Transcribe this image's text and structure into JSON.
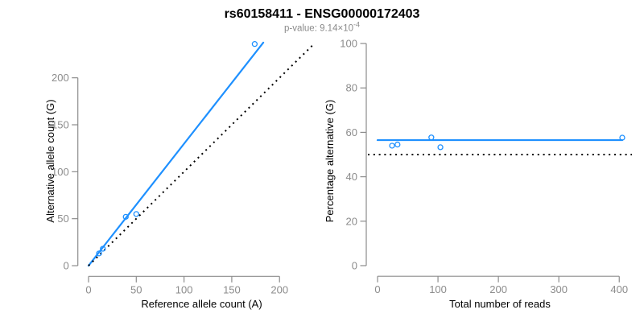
{
  "header": {
    "title": "rs60158411 - ENSG00000172403",
    "subtitle_prefix": "p-value: 9.14×10",
    "subtitle_exponent": "-4"
  },
  "colors": {
    "accent": "#1E90FF",
    "axis": "#8c8c8c",
    "title_text": "#000000",
    "subtitle_text": "#8a8a8a",
    "background": "#ffffff"
  },
  "chart_data": [
    {
      "type": "scatter",
      "name": "allele-count-plot",
      "xlabel": "Reference allele count (A)",
      "ylabel": "Alternative allele count (G)",
      "xlim": [
        -9.5,
        246.5
      ],
      "ylim": [
        -9.5,
        246.5
      ],
      "xticks": [
        0,
        50,
        100,
        150,
        200
      ],
      "yticks": [
        0,
        50,
        100,
        150,
        200
      ],
      "grid": false,
      "legend": "none",
      "points": [
        [
          11,
          13
        ],
        [
          15,
          18
        ],
        [
          39,
          52
        ],
        [
          50,
          55
        ],
        [
          174,
          236
        ]
      ],
      "lines": [
        {
          "name": "fit-line",
          "style": "solid",
          "color": "#1E90FF",
          "x1": 0,
          "y1": 0,
          "x2": 183,
          "y2": 237.5
        },
        {
          "name": "identity-line",
          "style": "dotted",
          "color": "#000000",
          "x1": 0,
          "y1": 0,
          "x2": 235,
          "y2": 235
        }
      ]
    },
    {
      "type": "scatter",
      "name": "percentage-alternative-plot",
      "xlabel": "Total number of reads",
      "ylabel": "Percentage alternative (G)",
      "xlim": [
        -16,
        421
      ],
      "ylim": [
        -4,
        104
      ],
      "xticks": [
        0,
        100,
        200,
        300,
        400
      ],
      "yticks": [
        0,
        20,
        40,
        60,
        80,
        100
      ],
      "grid": false,
      "legend": "none",
      "points": [
        [
          24,
          54
        ],
        [
          33,
          54.5
        ],
        [
          89,
          57.7
        ],
        [
          104,
          53.3
        ],
        [
          405,
          57.6
        ]
      ],
      "lines": [
        {
          "name": "fit-line",
          "style": "solid",
          "color": "#1E90FF",
          "x1": 0,
          "y1": 56.5,
          "x2": 405,
          "y2": 56.5
        },
        {
          "name": "reference-line",
          "style": "dotted",
          "color": "#000000",
          "x1": -16,
          "y1": 50,
          "x2": 421,
          "y2": 50
        }
      ]
    }
  ]
}
